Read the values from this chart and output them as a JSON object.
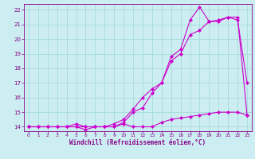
{
  "xlabel": "Windchill (Refroidissement éolien,°C)",
  "bg_color": "#cceef2",
  "grid_color": "#aadddd",
  "line_color": "#cc00cc",
  "text_color": "#880088",
  "xlim": [
    -0.5,
    23.5
  ],
  "ylim": [
    13.7,
    22.4
  ],
  "xticks": [
    0,
    1,
    2,
    3,
    4,
    5,
    6,
    7,
    8,
    9,
    10,
    11,
    12,
    13,
    14,
    15,
    16,
    17,
    18,
    19,
    20,
    21,
    22,
    23
  ],
  "yticks": [
    14,
    15,
    16,
    17,
    18,
    19,
    20,
    21,
    22
  ],
  "line1_x": [
    0,
    1,
    2,
    3,
    4,
    5,
    6,
    7,
    8,
    9,
    10,
    11,
    12,
    13,
    14,
    15,
    16,
    17,
    18,
    19,
    20,
    21,
    22,
    23
  ],
  "line1_y": [
    14.0,
    14.0,
    14.0,
    14.0,
    14.0,
    14.0,
    13.8,
    14.0,
    14.0,
    14.0,
    14.2,
    14.0,
    14.0,
    14.0,
    14.3,
    14.5,
    14.6,
    14.7,
    14.8,
    14.9,
    15.0,
    15.0,
    15.0,
    14.8
  ],
  "line2_x": [
    0,
    1,
    2,
    3,
    4,
    5,
    6,
    7,
    8,
    9,
    10,
    11,
    12,
    13,
    14,
    15,
    16,
    17,
    18,
    19,
    20,
    21,
    22,
    23
  ],
  "line2_y": [
    14.0,
    14.0,
    14.0,
    14.0,
    14.0,
    14.2,
    14.0,
    14.0,
    14.0,
    14.2,
    14.5,
    15.2,
    16.0,
    16.6,
    17.0,
    18.5,
    19.0,
    20.3,
    20.6,
    21.2,
    21.2,
    21.5,
    21.3,
    17.0
  ],
  "line3_x": [
    0,
    1,
    2,
    3,
    4,
    5,
    6,
    7,
    8,
    9,
    10,
    11,
    12,
    13,
    14,
    15,
    16,
    17,
    18,
    19,
    20,
    21,
    22,
    23
  ],
  "line3_y": [
    14.0,
    14.0,
    14.0,
    14.0,
    14.0,
    14.0,
    14.0,
    14.0,
    14.0,
    14.0,
    14.3,
    15.0,
    15.3,
    16.3,
    17.0,
    18.8,
    19.3,
    21.3,
    22.2,
    21.2,
    21.3,
    21.5,
    21.5,
    14.8
  ]
}
